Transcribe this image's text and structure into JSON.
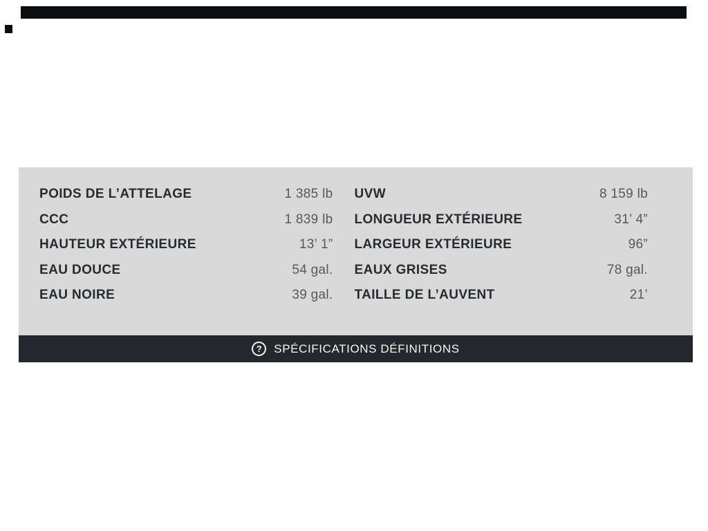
{
  "colors": {
    "page_bg": "#ffffff",
    "panel_bg": "#d9d9d9",
    "label_text": "#262b31",
    "value_text": "#54585e",
    "definitions_bar_bg": "#24282d",
    "definitions_bar_text": "#f6f5f0",
    "top_bar": "#0c0f12"
  },
  "specs": {
    "columns": [
      {
        "rows": [
          {
            "label": "POIDS DE L’ATTELAGE",
            "value": "1 385 lb"
          },
          {
            "label": "CCC",
            "value": "1 839 lb"
          },
          {
            "label": "HAUTEUR EXTÉRIEURE",
            "value": "13’ 1”"
          },
          {
            "label": "EAU DOUCE",
            "value": "54 gal."
          },
          {
            "label": "EAU NOIRE",
            "value": "39 gal."
          }
        ]
      },
      {
        "rows": [
          {
            "label": "UVW",
            "value": "8 159 lb"
          },
          {
            "label": "LONGUEUR EXTÉRIEURE",
            "value": "31’ 4”"
          },
          {
            "label": "LARGEUR EXTÉRIEURE",
            "value": "96”"
          },
          {
            "label": "EAUX GRISES",
            "value": "78 gal."
          },
          {
            "label": "TAILLE DE L’AUVENT",
            "value": "21’"
          }
        ]
      }
    ]
  },
  "definitions_bar": {
    "icon_glyph": "?",
    "label": "SPÉCIFICATIONS DÉFINITIONS"
  }
}
